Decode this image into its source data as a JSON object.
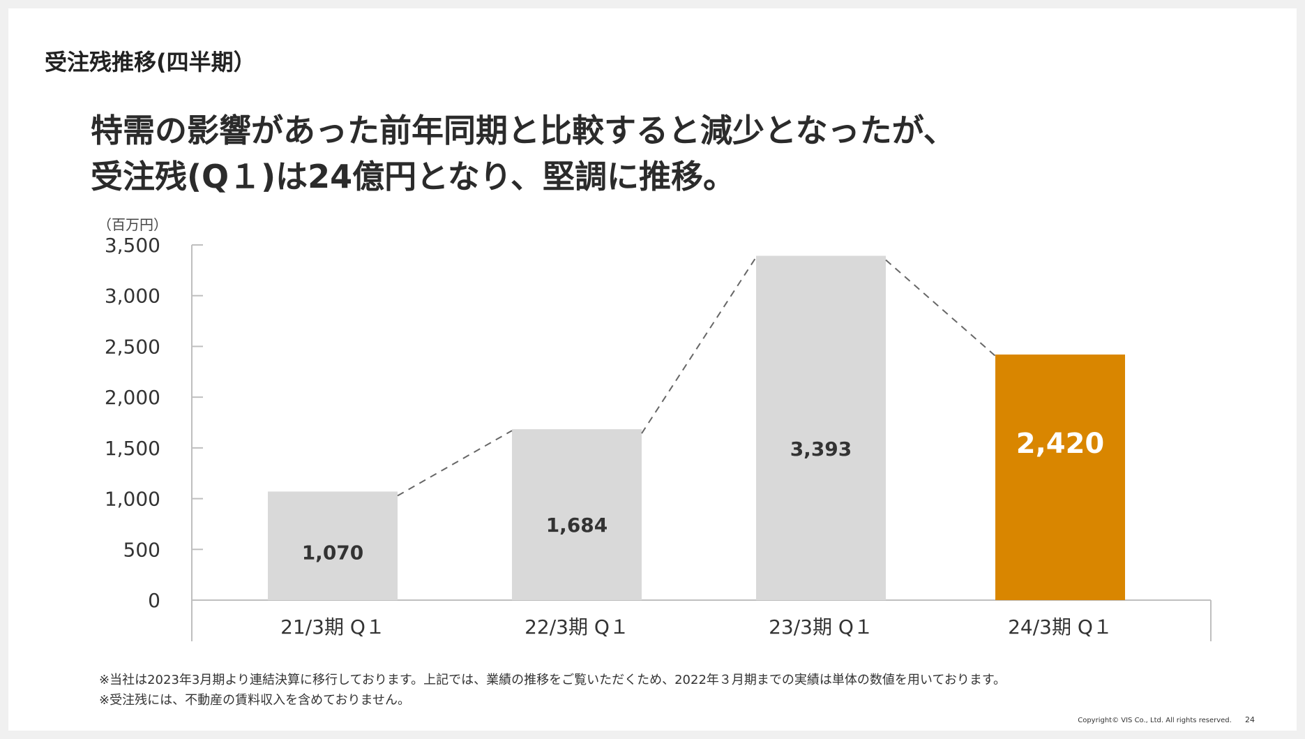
{
  "page": {
    "section_title": "受注残推移(四半期）",
    "headline_line1": "特需の影響があった前年同期と比較すると減少となったが、",
    "headline_line2": "受注残(Q１)は24億円となり、堅調に推移。",
    "footnote1": "※当社は2023年3月期より連結決算に移行しております。上記では、業績の推移をご覧いただくため、2022年３月期までの実績は単体の数値を用いております。",
    "footnote2": "※受注残には、不動産の賃料収入を含めておりません。",
    "copyright": "Copyright© VIS Co., Ltd. All rights reserved.",
    "page_number": "24"
  },
  "chart_data": {
    "type": "bar",
    "unit_label": "（百万円）",
    "categories": [
      "21/3期 Q１",
      "22/3期 Q１",
      "23/3期 Q１",
      "24/3期 Q１"
    ],
    "values": [
      1070,
      1684,
      3393,
      2420
    ],
    "value_labels": [
      "1,070",
      "1,684",
      "3,393",
      "2,420"
    ],
    "ylim": [
      0,
      3500
    ],
    "yticks": [
      0,
      500,
      1000,
      1500,
      2000,
      2500,
      3000,
      3500
    ],
    "ytick_labels": [
      "0",
      "500",
      "1,000",
      "1,500",
      "2,000",
      "2,500",
      "3,000",
      "3,500"
    ],
    "connector_lines": "dashed",
    "highlight_index": 3,
    "colors": {
      "bar": "#d9d9d9",
      "highlight_bar": "#d98600",
      "axis": "#bfbfbf",
      "connector": "#666666",
      "label": "#333333",
      "highlight_label": "#ffffff"
    },
    "grid": false,
    "legend": "none"
  }
}
